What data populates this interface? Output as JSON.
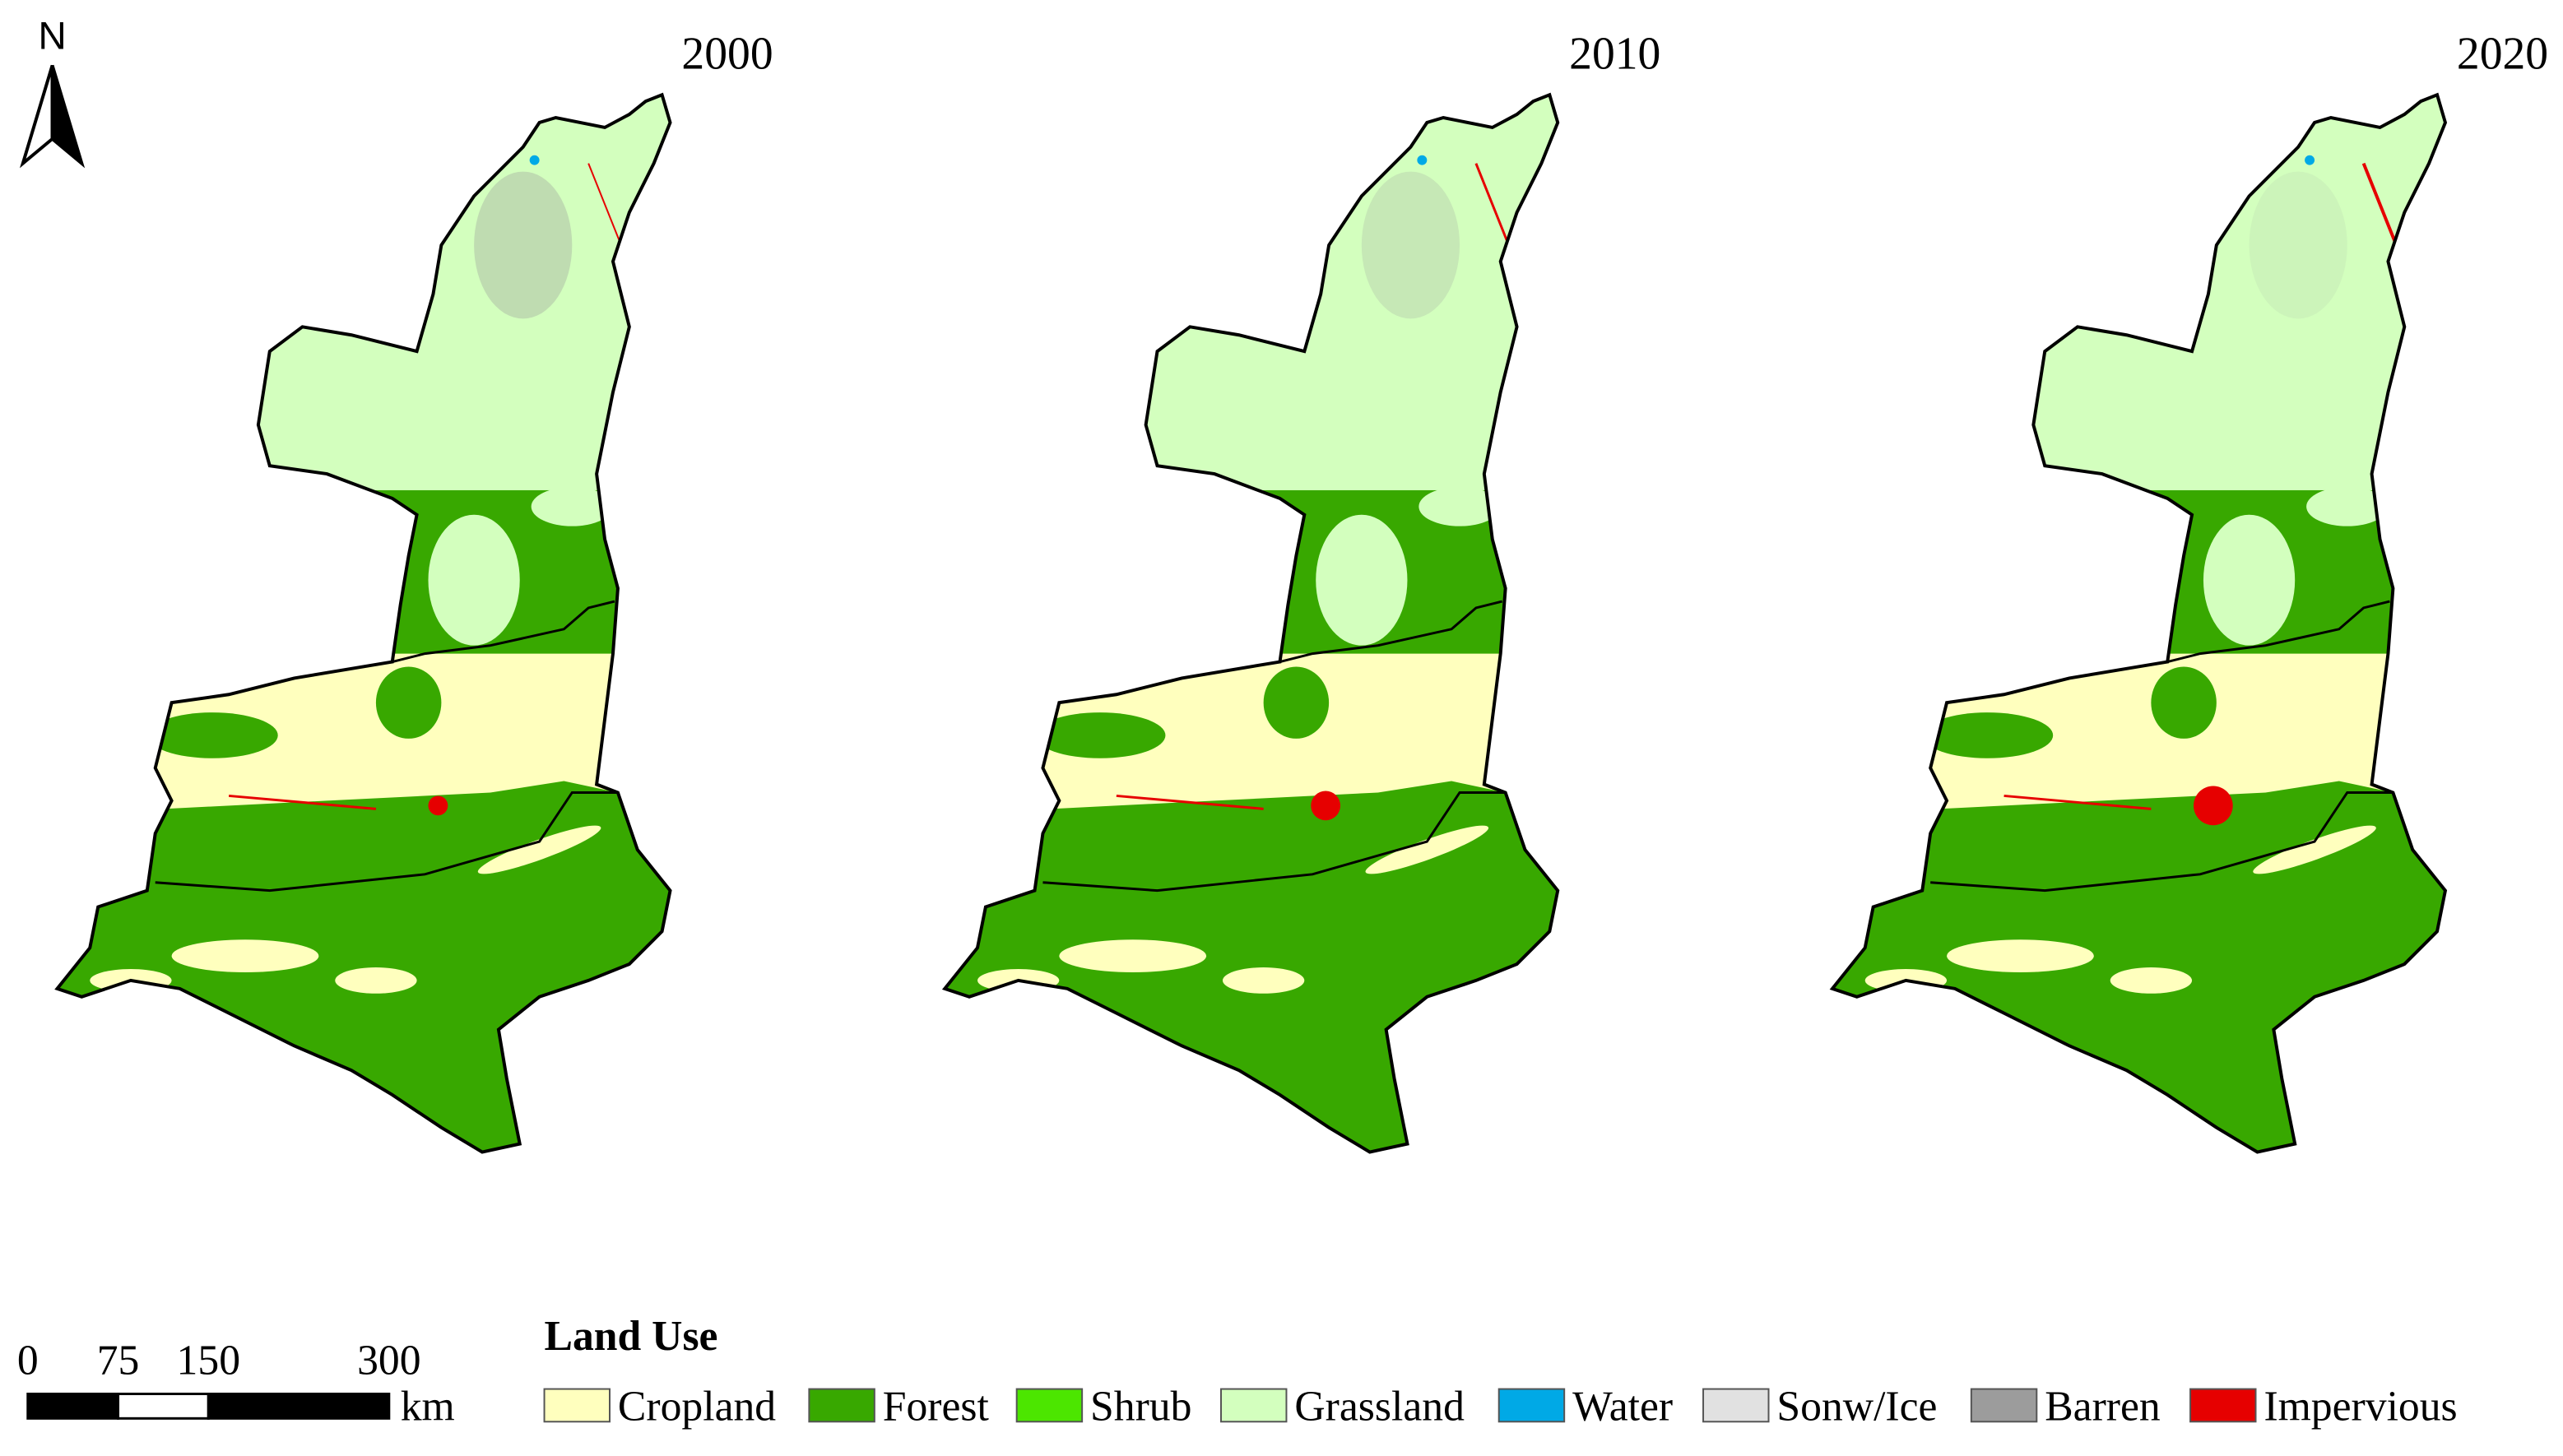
{
  "maps": [
    {
      "title": "2000"
    },
    {
      "title": "2010"
    },
    {
      "title": "2020"
    }
  ],
  "north_arrow": "N",
  "scale_bar": {
    "ticks": [
      0,
      75,
      150,
      300
    ],
    "unit": "km"
  },
  "legend": {
    "title": "Land Use",
    "items": [
      {
        "label": "Cropland",
        "color": "#ffffbe"
      },
      {
        "label": "Forest",
        "color": "#38a800"
      },
      {
        "label": "Shrub",
        "color": "#4ce600"
      },
      {
        "label": "Grassland",
        "color": "#d3ffbe"
      },
      {
        "label": "Water",
        "color": "#00a9e6"
      },
      {
        "label": "Sonw/Ice",
        "color": "#e1e1e1"
      },
      {
        "label": "Barren",
        "color": "#9c9c9c"
      },
      {
        "label": "Impervious",
        "color": "#e60000"
      }
    ]
  }
}
